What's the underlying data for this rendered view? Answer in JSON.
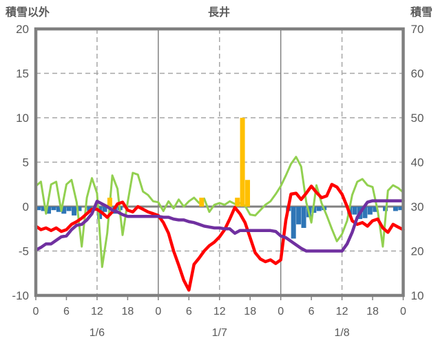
{
  "header": {
    "left_axis_title": "積雪以外",
    "chart_title": "長井",
    "right_axis_title": "積雪"
  },
  "chart_data": {
    "type": "line+bar combo (hourly weather/snow chart)",
    "title": "長井",
    "x_axis": {
      "total_hours": 72,
      "tick_interval_hours": 6,
      "tick_labels": [
        "0",
        "6",
        "12",
        "18",
        "0",
        "6",
        "12",
        "18",
        "0",
        "6",
        "12",
        "18",
        "0"
      ],
      "day_labels": [
        "1/6",
        "1/7",
        "1/8"
      ],
      "day_label_center_hours": [
        12,
        36,
        60
      ],
      "solid_gridline_hours": [
        24,
        48
      ],
      "dashed_gridline_hours": [
        12,
        36,
        60
      ]
    },
    "y_left": {
      "title": "積雪以外",
      "min": -10,
      "max": 20,
      "ticks": [
        20,
        15,
        10,
        5,
        0,
        -5,
        -10
      ],
      "zero_line": true,
      "dashed_levels": [
        15,
        10,
        5,
        -5
      ]
    },
    "y_right": {
      "title": "積雪",
      "min": 10,
      "max": 70,
      "ticks": [
        70,
        60,
        50,
        40,
        30,
        20,
        10
      ]
    },
    "series": [
      {
        "id": "blue-bars",
        "type": "bar",
        "color": "#2E75B6",
        "axis": "left",
        "values": [
          -0.4,
          -0.5,
          -0.8,
          -0.4,
          -0.6,
          -0.8,
          -0.5,
          -1.0,
          -0.5,
          0,
          -0.5,
          0,
          -1.4,
          -0.6,
          0,
          -0.8,
          -0.4,
          0,
          0,
          0,
          0,
          0,
          0,
          0,
          0,
          0,
          0,
          0,
          0,
          0,
          0,
          0,
          0,
          0,
          0,
          0,
          0,
          0,
          0,
          0,
          0,
          0,
          0,
          0,
          0,
          0,
          0,
          0,
          0,
          -0.5,
          -3.6,
          -2.0,
          -2.4,
          -1.2,
          -0.7,
          -0.5,
          -0.4,
          0,
          0,
          0,
          0,
          -0.9,
          -0.9,
          -1.4,
          -1.3,
          -0.9,
          -0.6,
          0,
          -0.5,
          0,
          -0.5,
          -0.4
        ]
      },
      {
        "id": "orange-bars",
        "type": "bar",
        "color": "#FFC000",
        "axis": "left",
        "values": [
          0,
          0,
          0,
          0,
          0,
          0,
          0,
          0,
          0,
          0,
          0,
          0,
          0,
          0,
          1.0,
          0,
          0,
          0,
          0,
          0,
          0,
          0,
          0,
          0,
          0,
          0,
          0,
          0,
          0,
          0,
          0,
          0,
          1.0,
          0,
          0,
          0,
          0,
          0,
          0,
          1.0,
          10.0,
          3.0,
          0,
          0,
          0,
          0,
          0,
          0,
          0,
          0,
          0,
          0,
          0,
          0,
          0,
          0,
          0,
          0,
          0,
          0,
          0,
          0,
          0,
          0,
          0,
          0,
          0,
          0,
          0,
          0,
          0,
          0
        ]
      },
      {
        "id": "green-line",
        "type": "line",
        "color": "#92D050",
        "width": 3,
        "axis": "left",
        "values": [
          2.3,
          2.8,
          -0.8,
          2.5,
          2.8,
          -0.5,
          2.5,
          3.0,
          0.5,
          -4.5,
          1.0,
          3.2,
          1.5,
          -6.8,
          -3.0,
          3.5,
          2.0,
          -3.2,
          0.5,
          3.8,
          3.6,
          1.7,
          1.3,
          0.6,
          0.5,
          -0.5,
          0.6,
          -0.2,
          0.8,
          0.0,
          0.6,
          1.0,
          0.4,
          0.9,
          -0.6,
          0.2,
          0.4,
          0.2,
          0.6,
          0.3,
          0.4,
          0.1,
          -0.9,
          -1.0,
          -0.4,
          0.2,
          0.6,
          1.4,
          2.3,
          3.5,
          4.8,
          5.6,
          4.5,
          0.5,
          -1.8,
          2.4,
          0.4,
          -1.0,
          -2.5,
          -3.9,
          -3.1,
          -1.6,
          1.3,
          2.8,
          3.1,
          2.4,
          2.2,
          -0.5,
          -4.5,
          1.8,
          2.4,
          2.1,
          1.6
        ]
      },
      {
        "id": "red-line",
        "type": "line",
        "color": "#FF0000",
        "width": 4.5,
        "axis": "left",
        "values": [
          -2.2,
          -2.6,
          -2.4,
          -2.7,
          -2.4,
          -2.8,
          -2.6,
          -2.0,
          -1.7,
          -1.3,
          -0.8,
          -0.3,
          -0.3,
          -0.7,
          -1.2,
          -0.6,
          0.3,
          0.5,
          -0.4,
          -0.6,
          0.0,
          -0.3,
          -0.6,
          -0.8,
          -1.0,
          -1.8,
          -3.0,
          -5.0,
          -6.6,
          -8.3,
          -9.4,
          -6.5,
          -5.8,
          -5.0,
          -4.4,
          -4.0,
          -3.4,
          -2.6,
          -1.4,
          -0.1,
          -0.8,
          -1.8,
          -3.5,
          -5.2,
          -5.9,
          -6.2,
          -6.0,
          -6.4,
          -6.0,
          -1.5,
          1.4,
          1.5,
          0.8,
          1.5,
          2.3,
          1.6,
          1.0,
          1.2,
          2.5,
          2.2,
          1.4,
          0.0,
          -1.6,
          -2.0,
          -1.8,
          -2.2,
          -1.6,
          -1.4,
          -2.4,
          -2.9,
          -2.0,
          -2.3,
          -2.6
        ]
      },
      {
        "id": "purple-line",
        "type": "line",
        "color": "#7030A0",
        "width": 4.5,
        "axis": "left",
        "values": [
          -4.9,
          -4.6,
          -4.2,
          -4.2,
          -3.8,
          -3.4,
          -3.3,
          -2.6,
          -2.1,
          -2.0,
          -1.5,
          -0.8,
          0.6,
          0.3,
          0.0,
          -0.4,
          -0.6,
          -0.9,
          -1.1,
          -1.1,
          -1.1,
          -1.1,
          -1.1,
          -1.1,
          -1.1,
          -1.2,
          -1.2,
          -1.4,
          -1.5,
          -1.5,
          -1.7,
          -1.8,
          -2.0,
          -2.2,
          -2.3,
          -2.4,
          -2.4,
          -2.5,
          -2.5,
          -3.0,
          -2.7,
          -2.7,
          -2.7,
          -2.7,
          -2.7,
          -2.7,
          -2.7,
          -2.8,
          -3.3,
          -3.5,
          -3.9,
          -4.3,
          -4.7,
          -5.0,
          -5.0,
          -5.0,
          -5.0,
          -5.0,
          -5.0,
          -5.0,
          -5.0,
          -4.2,
          -2.9,
          -1.2,
          -0.3,
          0.5,
          0.65,
          0.65,
          0.65,
          0.65,
          0.65,
          0.65,
          0.65
        ]
      }
    ],
    "style_colors": {
      "axis_border": "#808080",
      "zero_line": "#808080",
      "solid_gridline": "#808080",
      "dashed_gridline": "#a6a6a6",
      "text": "#595959",
      "background": "#ffffff"
    },
    "legend": "none"
  }
}
